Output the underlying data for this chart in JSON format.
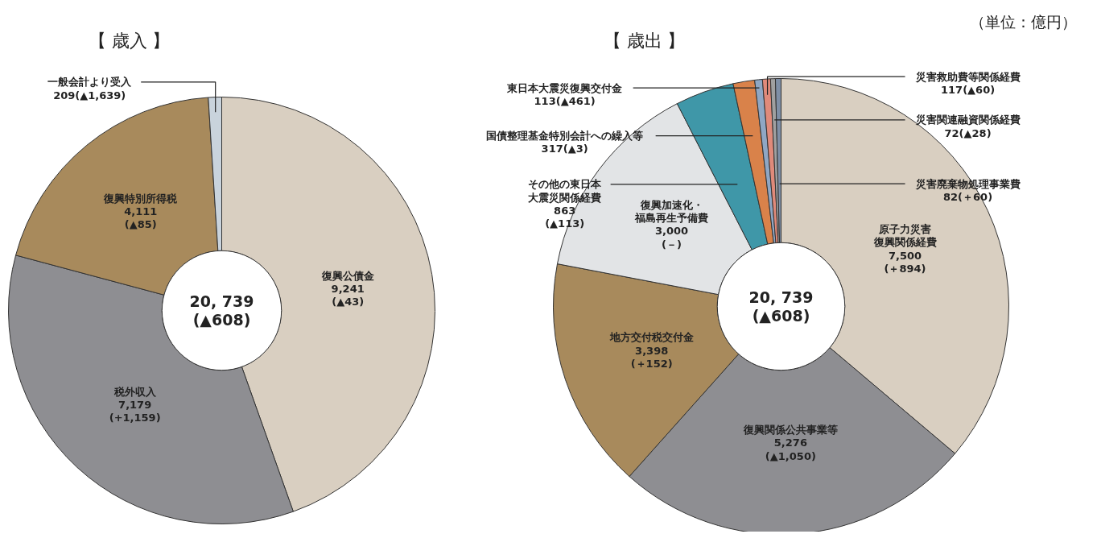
{
  "chart_data": [
    {
      "type": "donut",
      "title": "【 歳入 】",
      "categories": [
        "復興公債金",
        "税外収入",
        "復興特別所得税",
        "一般会計より受入"
      ],
      "values": [
        9241,
        7179,
        4111,
        209
      ],
      "value_labels": [
        "9,241\n(▲43)",
        "7,179\n(+1,159)",
        "4,111\n(▲85)",
        "209(▲1,639)"
      ],
      "colors": [
        "#d9cfc1",
        "#8e8e92",
        "#a88a5c",
        "#c9d3dc"
      ],
      "annotations": [
        "20, 739\n(▲608)"
      ]
    },
    {
      "type": "donut",
      "title": "【 歳出 】",
      "categories": [
        "原子力災害復興関係経費",
        "復興関係公共事業等",
        "地方交付税交付金",
        "復興加速化・福島再生予備費",
        "その他の東日本大震災関係経費",
        "国債整理基金特別会計への繰入等",
        "東日本大震災復興交付金",
        "災害救助費等関係経費",
        "災害関連融資関係経費",
        "災害廃棄物処理事業費"
      ],
      "values": [
        7500,
        5276,
        3398,
        3000,
        863,
        317,
        113,
        117,
        72,
        82
      ],
      "value_labels": [
        "7,500\n(＋894)",
        "5,276\n(▲1,050)",
        "3,398\n(＋152)",
        "3,000\n(－)",
        "863\n(▲113)",
        "317(▲3)",
        "113(▲461)",
        "117(▲60)",
        "72(▲28)",
        "82(＋60)"
      ],
      "colors": [
        "#d9cfc1",
        "#8e8e92",
        "#a88a5c",
        "#e2e4e6",
        "#3f97a8",
        "#d9824a",
        "#8fa7c4",
        "#e08a7a",
        "#a0a0a0",
        "#7f8fa6"
      ],
      "annotations": [
        "20, 739\n(▲608)",
        "（単位：億円）"
      ]
    }
  ]
}
